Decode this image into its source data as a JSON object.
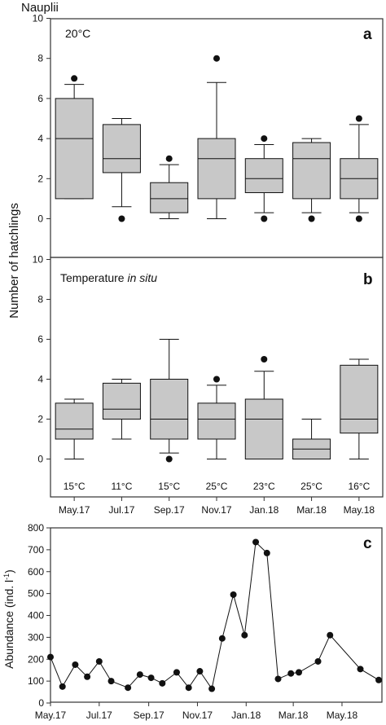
{
  "figure": {
    "title": "Nauplii",
    "shared_ylabel": "Number of hatchlings"
  },
  "chart_data": [
    {
      "type": "box",
      "panel_label": "a",
      "annotation": "20°C",
      "categories": [
        "May.17",
        "Jul.17",
        "Sep.17",
        "Nov.17",
        "Jan.18",
        "Mar.18",
        "May.18"
      ],
      "ylim": [
        0,
        10
      ],
      "yticks": [
        0,
        2,
        4,
        6,
        8,
        10
      ],
      "boxes": [
        {
          "min": 1,
          "q1": 1,
          "median": 4,
          "q3": 6,
          "max": 6.7,
          "outliers": [
            7
          ]
        },
        {
          "min": 0.6,
          "q1": 2.3,
          "median": 3,
          "q3": 4.7,
          "max": 5,
          "outliers": [
            0
          ]
        },
        {
          "min": 0,
          "q1": 0.3,
          "median": 1,
          "q3": 1.8,
          "max": 2.7,
          "outliers": [
            3
          ]
        },
        {
          "min": 0,
          "q1": 1,
          "median": 3,
          "q3": 4,
          "max": 6.8,
          "outliers": [
            8
          ]
        },
        {
          "min": 0.3,
          "q1": 1.3,
          "median": 2,
          "q3": 3,
          "max": 3.7,
          "outliers": [
            4,
            0
          ]
        },
        {
          "min": 0.3,
          "q1": 1,
          "median": 3,
          "q3": 3.8,
          "max": 4,
          "outliers": [
            0
          ]
        },
        {
          "min": 0.3,
          "q1": 1,
          "median": 2,
          "q3": 3,
          "max": 4.7,
          "outliers": [
            5,
            0
          ]
        }
      ]
    },
    {
      "type": "box",
      "panel_label": "b",
      "annotation_prefix": "Temperature ",
      "annotation_italic": "in situ",
      "categories": [
        "May.17",
        "Jul.17",
        "Sep.17",
        "Nov.17",
        "Jan.18",
        "Mar.18",
        "May.18"
      ],
      "ylim": [
        0,
        10
      ],
      "yticks": [
        0,
        2,
        4,
        6,
        8,
        10
      ],
      "temperatures": [
        "15°C",
        "11°C",
        "15°C",
        "25°C",
        "23°C",
        "25°C",
        "16°C"
      ],
      "boxes": [
        {
          "min": 0,
          "q1": 1,
          "median": 1.5,
          "q3": 2.8,
          "max": 3,
          "outliers": []
        },
        {
          "min": 1,
          "q1": 2,
          "median": 2.5,
          "q3": 3.8,
          "max": 4,
          "outliers": []
        },
        {
          "min": 0.3,
          "q1": 1,
          "median": 2,
          "q3": 4,
          "max": 6,
          "outliers": [
            0
          ]
        },
        {
          "min": 0,
          "q1": 1,
          "median": 2,
          "q3": 2.8,
          "max": 3.7,
          "outliers": [
            4
          ]
        },
        {
          "min": 0,
          "q1": 0,
          "median": 2,
          "q3": 3,
          "max": 4.4,
          "outliers": [
            5
          ]
        },
        {
          "min": 0,
          "q1": 0,
          "median": 0.5,
          "q3": 1,
          "max": 2,
          "outliers": []
        },
        {
          "min": 0,
          "q1": 1.3,
          "median": 2,
          "q3": 4.7,
          "max": 5,
          "outliers": []
        }
      ]
    },
    {
      "type": "line",
      "panel_label": "c",
      "ylabel_main": "Abundance (ind. l",
      "ylabel_sup": "-1",
      "ylabel_end": ")",
      "ylim": [
        0,
        800
      ],
      "yticks": [
        0,
        100,
        200,
        300,
        400,
        500,
        600,
        700,
        800
      ],
      "xlim": [
        "2017-05-01",
        "2018-06-20"
      ],
      "xticks": [
        {
          "label": "May.17",
          "date": "2017-05-01"
        },
        {
          "label": "Jul.17",
          "date": "2017-07-01"
        },
        {
          "label": "Sep.17",
          "date": "2017-09-01"
        },
        {
          "label": "Nov.17",
          "date": "2017-11-01"
        },
        {
          "label": "Jan.18",
          "date": "2018-01-01"
        },
        {
          "label": "Mar.18",
          "date": "2018-03-01"
        },
        {
          "label": "May.18",
          "date": "2018-05-01"
        }
      ],
      "points": [
        {
          "date": "2017-05-01",
          "value": 210
        },
        {
          "date": "2017-05-16",
          "value": 75
        },
        {
          "date": "2017-06-01",
          "value": 175
        },
        {
          "date": "2017-06-16",
          "value": 120
        },
        {
          "date": "2017-07-01",
          "value": 190
        },
        {
          "date": "2017-07-16",
          "value": 100
        },
        {
          "date": "2017-08-06",
          "value": 70
        },
        {
          "date": "2017-08-21",
          "value": 130
        },
        {
          "date": "2017-09-04",
          "value": 115
        },
        {
          "date": "2017-09-18",
          "value": 90
        },
        {
          "date": "2017-10-06",
          "value": 140
        },
        {
          "date": "2017-10-21",
          "value": 70
        },
        {
          "date": "2017-11-04",
          "value": 145
        },
        {
          "date": "2017-11-19",
          "value": 65
        },
        {
          "date": "2017-12-02",
          "value": 295
        },
        {
          "date": "2017-12-16",
          "value": 495
        },
        {
          "date": "2017-12-30",
          "value": 310
        },
        {
          "date": "2018-01-13",
          "value": 735
        },
        {
          "date": "2018-01-27",
          "value": 685
        },
        {
          "date": "2018-02-10",
          "value": 110
        },
        {
          "date": "2018-02-26",
          "value": 135
        },
        {
          "date": "2018-03-08",
          "value": 140
        },
        {
          "date": "2018-04-01",
          "value": 190
        },
        {
          "date": "2018-04-16",
          "value": 310
        },
        {
          "date": "2018-05-24",
          "value": 155
        },
        {
          "date": "2018-06-16",
          "value": 105
        }
      ]
    }
  ],
  "colors": {
    "box_fill": "#c8c8c8",
    "stroke": "#111111",
    "frame": "#333333",
    "point": "#111111"
  }
}
